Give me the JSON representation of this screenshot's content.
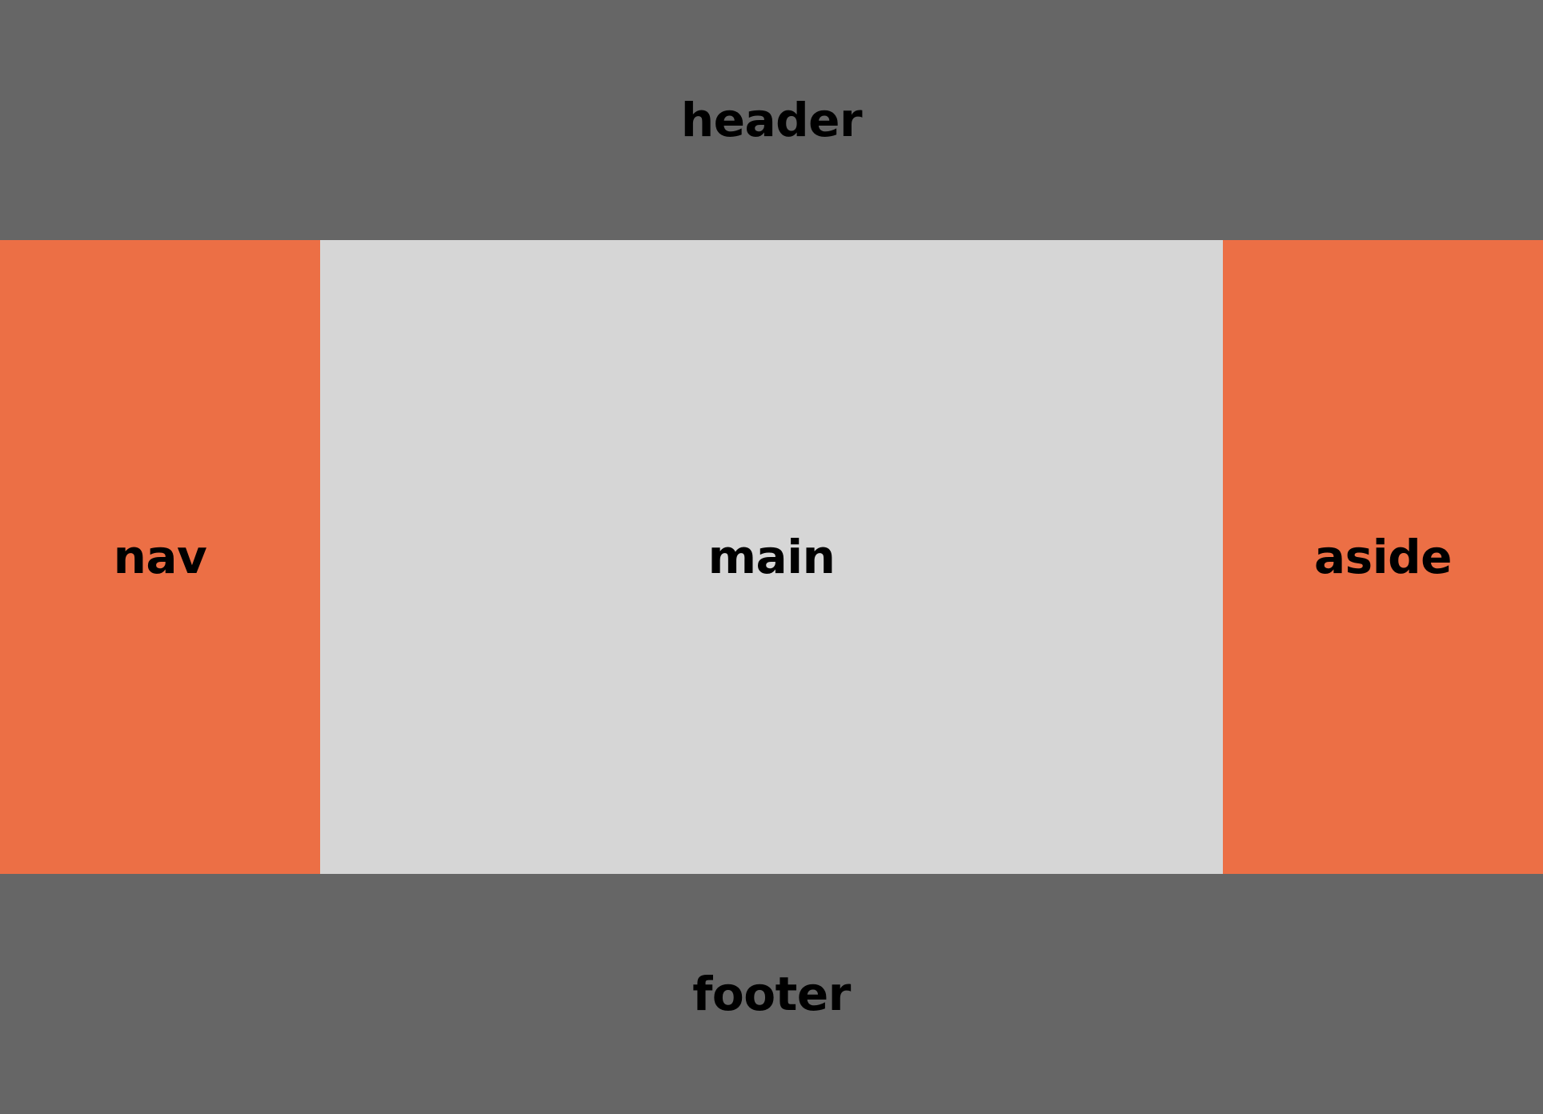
{
  "regions": {
    "header": {
      "label": "header",
      "color": "#666666"
    },
    "nav": {
      "label": "nav",
      "color": "#ec6f45"
    },
    "main": {
      "label": "main",
      "color": "#d6d6d6"
    },
    "aside": {
      "label": "aside",
      "color": "#ec6f45"
    },
    "footer": {
      "label": "footer",
      "color": "#666666"
    }
  }
}
